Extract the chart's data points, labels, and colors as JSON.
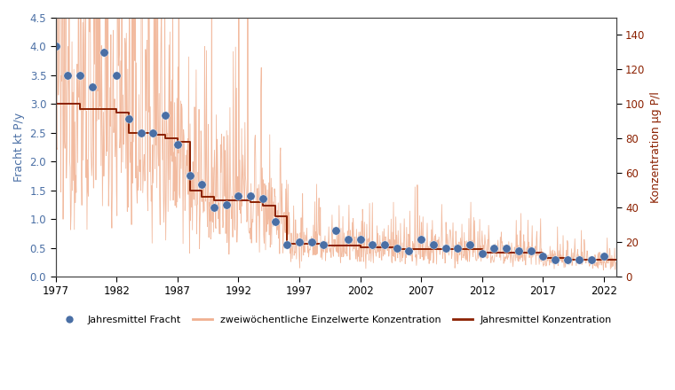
{
  "fracht_years": [
    1977,
    1978,
    1979,
    1980,
    1981,
    1982,
    1983,
    1984,
    1985,
    1986,
    1987,
    1988,
    1989,
    1990,
    1991,
    1992,
    1993,
    1994,
    1995,
    1996,
    1997,
    1998,
    1999,
    2000,
    2001,
    2002,
    2003,
    2004,
    2005,
    2006,
    2007,
    2008,
    2009,
    2010,
    2011,
    2012,
    2013,
    2014,
    2015,
    2016,
    2017,
    2018,
    2019,
    2020,
    2021,
    2022
  ],
  "fracht_values": [
    4.0,
    3.5,
    3.5,
    3.3,
    3.9,
    3.5,
    2.75,
    2.5,
    2.5,
    2.8,
    2.3,
    1.75,
    1.6,
    1.2,
    1.25,
    1.4,
    1.4,
    1.35,
    0.95,
    0.55,
    0.6,
    0.6,
    0.55,
    0.8,
    0.65,
    0.65,
    0.55,
    0.55,
    0.5,
    0.45,
    0.65,
    0.55,
    0.5,
    0.5,
    0.55,
    0.4,
    0.5,
    0.5,
    0.45,
    0.45,
    0.35,
    0.3,
    0.3,
    0.3,
    0.3,
    0.35
  ],
  "konz_annual_years": [
    1977,
    1978,
    1979,
    1980,
    1981,
    1982,
    1983,
    1984,
    1985,
    1986,
    1987,
    1988,
    1989,
    1990,
    1991,
    1992,
    1993,
    1994,
    1995,
    1996,
    1997,
    1998,
    1999,
    2000,
    2001,
    2002,
    2003,
    2004,
    2005,
    2006,
    2007,
    2008,
    2009,
    2010,
    2011,
    2012,
    2013,
    2014,
    2015,
    2016,
    2017,
    2018,
    2019,
    2020,
    2021,
    2022
  ],
  "konz_annual_values": [
    100,
    100,
    97,
    97,
    97,
    95,
    83,
    83,
    82,
    80,
    78,
    50,
    46,
    44,
    44,
    44,
    43,
    41,
    35,
    19,
    19,
    19,
    18,
    18,
    18,
    17,
    17,
    17,
    16,
    16,
    16,
    16,
    16,
    16,
    16,
    14,
    14,
    14,
    14,
    14,
    11,
    11,
    10,
    10,
    10,
    10
  ],
  "fracht_color": "#4A6FA5",
  "konz_biweekly_color": "#F0B090",
  "konz_annual_color": "#8B2000",
  "left_ylabel": "Fracht kt P/y",
  "right_ylabel": "Konzentration µg P/l",
  "left_ylim": [
    0,
    4.5
  ],
  "right_ylim": [
    0,
    150
  ],
  "xlim": [
    1977,
    2023
  ],
  "xticks": [
    1977,
    1982,
    1987,
    1992,
    1997,
    2002,
    2007,
    2012,
    2017,
    2022
  ],
  "left_yticks": [
    0,
    0.5,
    1.0,
    1.5,
    2.0,
    2.5,
    3.0,
    3.5,
    4.0,
    4.5
  ],
  "right_yticks": [
    0,
    20,
    40,
    60,
    80,
    100,
    120,
    140
  ],
  "legend_fracht": "Jahresmittel Fracht",
  "legend_biweekly": "zweiwöchentliche Einzelwerte Konzentration",
  "legend_annual": "Jahresmittel Konzentration",
  "left_ylabel_color": "#4A6FA5",
  "right_ylabel_color": "#8B2000",
  "background_color": "#FFFFFF",
  "figure_background": "#FFFFFF",
  "spine_color": "#444444"
}
